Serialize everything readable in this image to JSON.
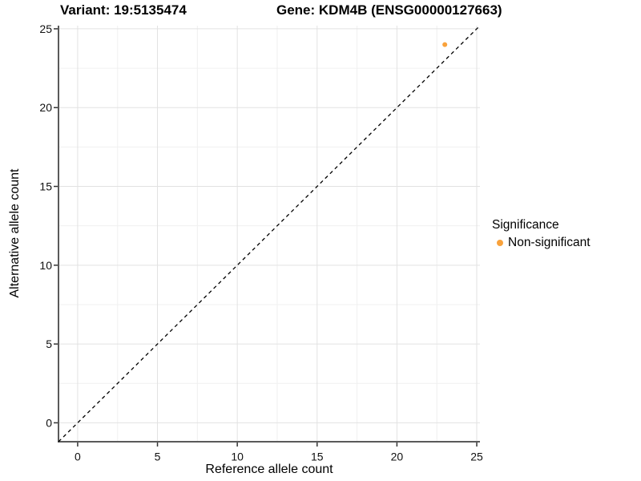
{
  "header": {
    "variant_title": "Variant: 19:5135474",
    "gene_title": "Gene: KDM4B (ENSG00000127663)"
  },
  "axes": {
    "x_label": "Reference allele count",
    "y_label": "Alternative allele count"
  },
  "legend": {
    "title": "Significance",
    "position": "right",
    "items": [
      {
        "label": "Non-significant",
        "color": "#F9A23C",
        "marker": "dot"
      }
    ]
  },
  "colors": {
    "background": "#FFFFFF",
    "point": "#F9A23C",
    "axis_line": "#5A5A5A",
    "tick": "#333333",
    "tick_label": "#111111",
    "grid_major": "#E2E2E2",
    "grid_minor": "#F0F0F0",
    "reference_line": "#000000"
  },
  "chart_data": {
    "type": "scatter",
    "title": "Variant: 19:5135474",
    "subtitle": "Gene: KDM4B (ENSG00000127663)",
    "xlabel": "Reference allele count",
    "ylabel": "Alternative allele count",
    "xlim": [
      -1.2,
      25.2
    ],
    "ylim": [
      -1.2,
      25.2
    ],
    "x_ticks": [
      0,
      5,
      10,
      15,
      20,
      25
    ],
    "y_ticks": [
      0,
      5,
      10,
      15,
      20,
      25
    ],
    "x_minor_ticks": [
      2.5,
      7.5,
      12.5,
      17.5,
      22.5
    ],
    "y_minor_ticks": [
      2.5,
      7.5,
      12.5,
      17.5,
      22.5
    ],
    "grid": "major+minor",
    "legend_position": "right",
    "series": [
      {
        "name": "Non-significant",
        "color": "#F9A23C",
        "points": [
          {
            "x": 23,
            "y": 24
          }
        ]
      }
    ],
    "reference_line": {
      "style": "dashed",
      "slope": 1,
      "intercept": 0
    }
  }
}
